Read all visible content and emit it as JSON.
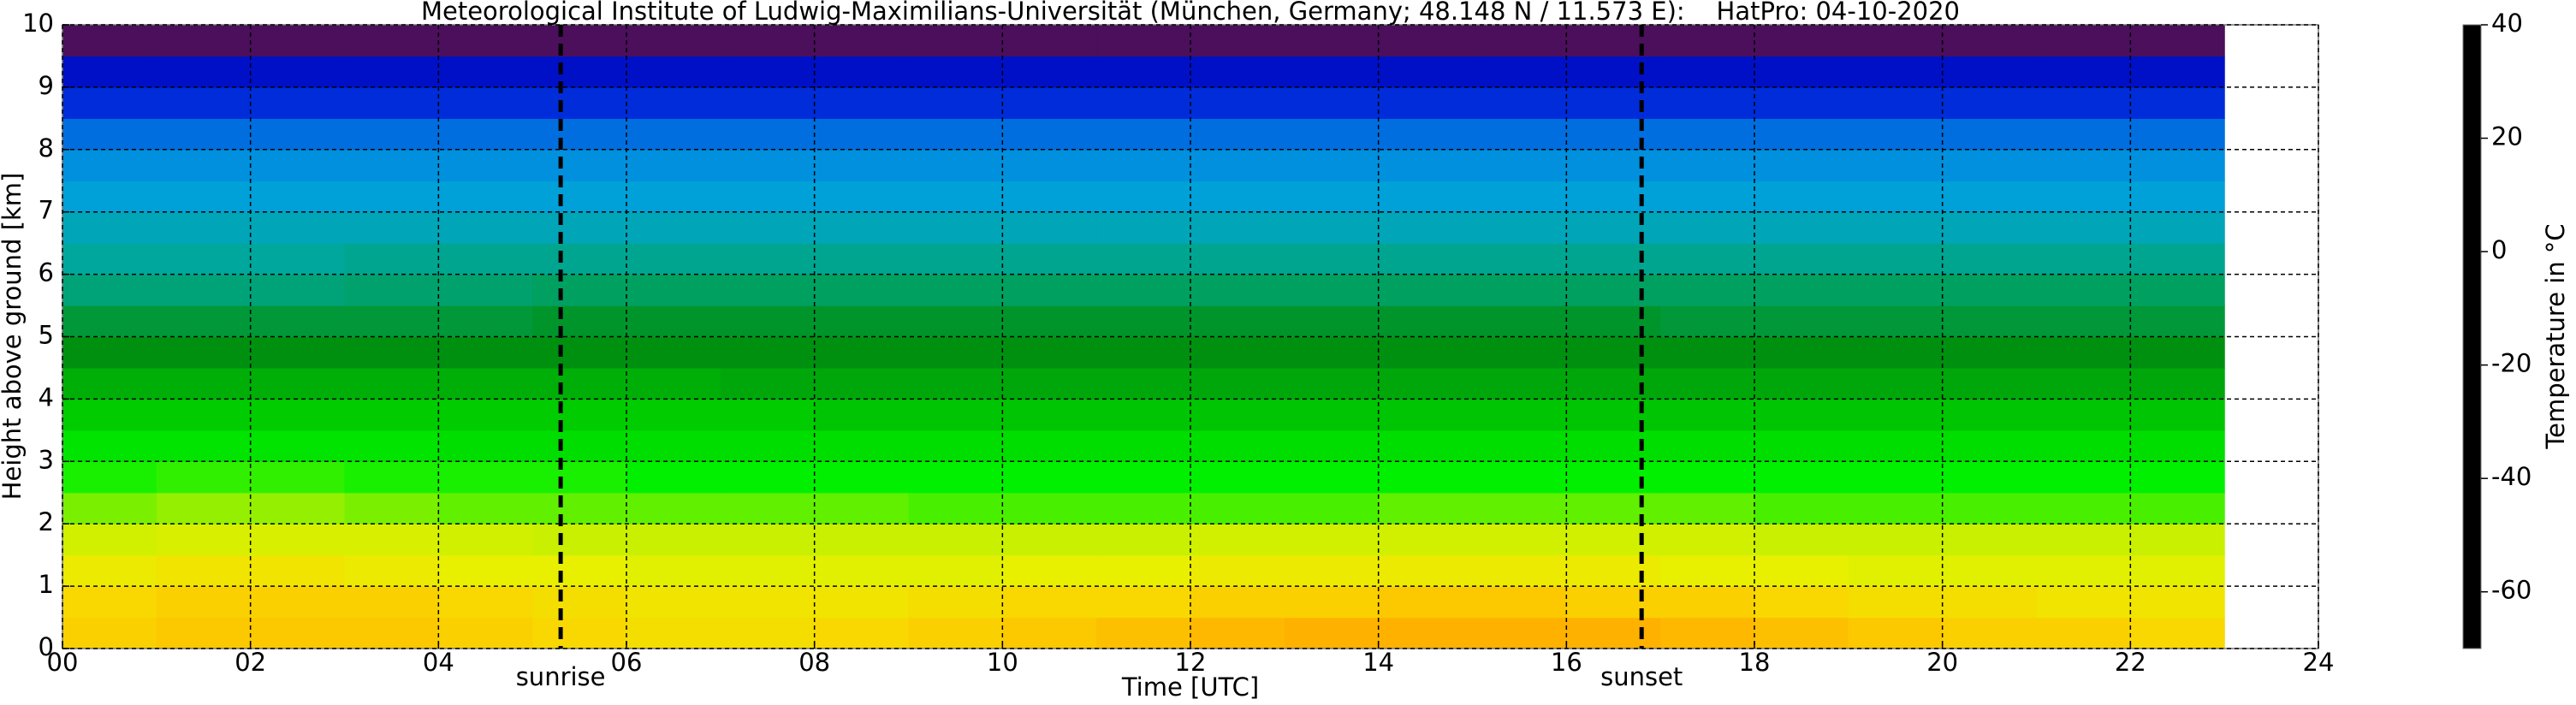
{
  "chart_data": {
    "type": "heatmap",
    "title": "Meteorological Institute of Ludwig-Maximilians-Universität (München, Germany; 48.148 N / 11.573 E):    HatPro: 04-10-2020",
    "xlabel": "Time [UTC]",
    "ylabel": "Height above ground [km]",
    "colorbar_label": "Temperature in °C",
    "xlim": [
      0,
      24
    ],
    "ylim": [
      0,
      10
    ],
    "clim": [
      -70,
      40
    ],
    "xticks": [
      {
        "value": 0,
        "label": "00"
      },
      {
        "value": 2,
        "label": "02"
      },
      {
        "value": 4,
        "label": "04"
      },
      {
        "value": 6,
        "label": "06"
      },
      {
        "value": 8,
        "label": "08"
      },
      {
        "value": 10,
        "label": "10"
      },
      {
        "value": 12,
        "label": "12"
      },
      {
        "value": 14,
        "label": "14"
      },
      {
        "value": 16,
        "label": "16"
      },
      {
        "value": 18,
        "label": "18"
      },
      {
        "value": 20,
        "label": "20"
      },
      {
        "value": 22,
        "label": "22"
      },
      {
        "value": 24,
        "label": "24"
      }
    ],
    "yticks": [
      0,
      1,
      2,
      3,
      4,
      5,
      6,
      7,
      8,
      9,
      10
    ],
    "cticks": [
      -60,
      -40,
      -20,
      0,
      20,
      40
    ],
    "grid": true,
    "annotations": [
      {
        "label": "sunrise",
        "x": 5.3
      },
      {
        "label": "sunset",
        "x": 16.8
      }
    ],
    "colormap": [
      {
        "value": -70,
        "color": "#000000"
      },
      {
        "value": -68,
        "color": "#000000"
      },
      {
        "value": -68,
        "color": "#4b0f5c"
      },
      {
        "value": -58,
        "color": "#4b0f5c"
      },
      {
        "value": -58,
        "color": "#0000b4"
      },
      {
        "value": -50,
        "color": "#0020d8"
      },
      {
        "value": -42,
        "color": "#0088e0"
      },
      {
        "value": -36,
        "color": "#00a0d8"
      },
      {
        "value": -30,
        "color": "#00a8a8"
      },
      {
        "value": -24,
        "color": "#00a060"
      },
      {
        "value": -18,
        "color": "#009010"
      },
      {
        "value": -10,
        "color": "#00cc00"
      },
      {
        "value": -4,
        "color": "#00f000"
      },
      {
        "value": 0,
        "color": "#60f000"
      },
      {
        "value": 4,
        "color": "#c8f000"
      },
      {
        "value": 8,
        "color": "#e8f000"
      },
      {
        "value": 12,
        "color": "#f8d800"
      },
      {
        "value": 16,
        "color": "#ffb800"
      },
      {
        "value": 20,
        "color": "#ff9c00"
      },
      {
        "value": 20,
        "color": "#e06840"
      },
      {
        "value": 23,
        "color": "#e06840"
      },
      {
        "value": 23,
        "color": "#d00a20"
      },
      {
        "value": 35,
        "color": "#d00a20"
      },
      {
        "value": 35,
        "color": "#c0a070"
      },
      {
        "value": 37,
        "color": "#c0a070"
      },
      {
        "value": 37,
        "color": "#d8d0b0"
      },
      {
        "value": 40,
        "color": "#d8d0b0"
      }
    ],
    "x_edges": [
      0,
      1,
      2,
      3,
      4,
      5,
      6,
      7,
      8,
      9,
      10,
      11,
      12,
      13,
      14,
      15,
      16,
      17,
      18,
      19,
      20,
      21,
      22,
      23
    ],
    "y_edges": [
      0,
      0.5,
      1,
      1.5,
      2,
      2.5,
      3,
      3.5,
      4,
      4.5,
      5,
      5.5,
      6,
      6.5,
      7,
      7.5,
      8,
      8.5,
      9,
      9.5,
      10
    ],
    "z": [
      [
        13,
        14,
        14,
        14,
        13,
        12,
        11,
        11,
        12,
        13,
        14,
        15,
        16,
        17,
        17,
        17,
        17,
        16,
        15,
        14,
        13,
        13,
        12
      ],
      [
        12,
        13,
        13,
        13,
        12,
        11,
        10,
        10,
        10,
        11,
        12,
        12,
        13,
        13,
        14,
        14,
        13,
        13,
        12,
        11,
        11,
        10,
        10
      ],
      [
        9,
        10,
        10,
        9,
        8,
        8,
        7,
        7,
        7,
        7,
        8,
        8,
        9,
        9,
        9,
        9,
        9,
        8,
        8,
        7,
        7,
        7,
        7
      ],
      [
        5,
        6,
        6,
        6,
        5,
        4,
        4,
        4,
        4,
        4,
        4,
        4,
        5,
        5,
        5,
        5,
        5,
        5,
        4,
        4,
        4,
        4,
        4
      ],
      [
        1,
        2,
        2,
        1,
        0,
        0,
        0,
        0,
        0,
        -1,
        -1,
        -1,
        -1,
        -1,
        0,
        0,
        0,
        0,
        -1,
        -1,
        -1,
        -1,
        -1
      ],
      [
        -3,
        -2,
        -2,
        -3,
        -3,
        -3,
        -4,
        -4,
        -4,
        -4,
        -4,
        -4,
        -4,
        -4,
        -4,
        -4,
        -4,
        -4,
        -4,
        -4,
        -4,
        -4,
        -4
      ],
      [
        -6,
        -6,
        -6,
        -6,
        -7,
        -7,
        -7,
        -7,
        -7,
        -7,
        -7,
        -7,
        -7,
        -7,
        -7,
        -7,
        -7,
        -7,
        -7,
        -7,
        -7,
        -7,
        -7
      ],
      [
        -10,
        -10,
        -10,
        -10,
        -10,
        -10,
        -10,
        -10,
        -11,
        -11,
        -11,
        -11,
        -11,
        -11,
        -11,
        -11,
        -11,
        -11,
        -11,
        -11,
        -11,
        -11,
        -11
      ],
      [
        -14,
        -14,
        -14,
        -14,
        -14,
        -14,
        -14,
        -15,
        -15,
        -15,
        -15,
        -15,
        -15,
        -15,
        -15,
        -15,
        -15,
        -15,
        -15,
        -15,
        -15,
        -15,
        -15
      ],
      [
        -18,
        -18,
        -18,
        -18,
        -18,
        -18,
        -18,
        -18,
        -18,
        -18,
        -18,
        -18,
        -18,
        -18,
        -18,
        -18,
        -18,
        -18,
        -18,
        -18,
        -18,
        -18,
        -18
      ],
      [
        -21,
        -21,
        -21,
        -21,
        -21,
        -20,
        -20,
        -20,
        -20,
        -20,
        -20,
        -20,
        -20,
        -20,
        -20,
        -20,
        -20,
        -21,
        -21,
        -21,
        -21,
        -21,
        -21
      ],
      [
        -26,
        -26,
        -26,
        -25,
        -25,
        -24,
        -24,
        -24,
        -24,
        -24,
        -24,
        -24,
        -24,
        -24,
        -24,
        -24,
        -24,
        -24,
        -24,
        -24,
        -24,
        -24,
        -24
      ],
      [
        -29,
        -29,
        -29,
        -28,
        -28,
        -28,
        -28,
        -28,
        -28,
        -28,
        -28,
        -28,
        -28,
        -28,
        -28,
        -28,
        -28,
        -28,
        -28,
        -28,
        -28,
        -28,
        -28
      ],
      [
        -32,
        -32,
        -32,
        -32,
        -32,
        -32,
        -32,
        -32,
        -32,
        -32,
        -32,
        -32,
        -32,
        -32,
        -32,
        -32,
        -32,
        -32,
        -32,
        -32,
        -32,
        -32,
        -32
      ],
      [
        -36,
        -36,
        -36,
        -36,
        -36,
        -36,
        -36,
        -36,
        -36,
        -36,
        -36,
        -36,
        -36,
        -36,
        -36,
        -36,
        -36,
        -36,
        -36,
        -36,
        -36,
        -36,
        -36
      ],
      [
        -40,
        -40,
        -40,
        -40,
        -40,
        -40,
        -40,
        -40,
        -40,
        -40,
        -40,
        -40,
        -40,
        -40,
        -40,
        -40,
        -40,
        -40,
        -40,
        -40,
        -40,
        -40,
        -40
      ],
      [
        -44,
        -44,
        -44,
        -44,
        -44,
        -44,
        -44,
        -44,
        -44,
        -44,
        -44,
        -44,
        -44,
        -44,
        -44,
        -44,
        -44,
        -44,
        -44,
        -44,
        -44,
        -44,
        -44
      ],
      [
        -49,
        -49,
        -49,
        -49,
        -49,
        -49,
        -49,
        -49,
        -49,
        -49,
        -49,
        -49,
        -49,
        -49,
        -49,
        -49,
        -49,
        -49,
        -49,
        -49,
        -49,
        -49,
        -49
      ],
      [
        -54,
        -54,
        -54,
        -54,
        -54,
        -54,
        -54,
        -54,
        -54,
        -54,
        -54,
        -54,
        -54,
        -54,
        -54,
        -54,
        -54,
        -54,
        -54,
        -54,
        -54,
        -54,
        -54
      ],
      [
        -58,
        -58,
        -58,
        -58,
        -58,
        -58,
        -58,
        -58,
        -58,
        -58,
        -58,
        -58,
        -58,
        -58,
        -58,
        -58,
        -58,
        -58,
        -58,
        -58,
        -58,
        -58,
        -58
      ]
    ]
  }
}
